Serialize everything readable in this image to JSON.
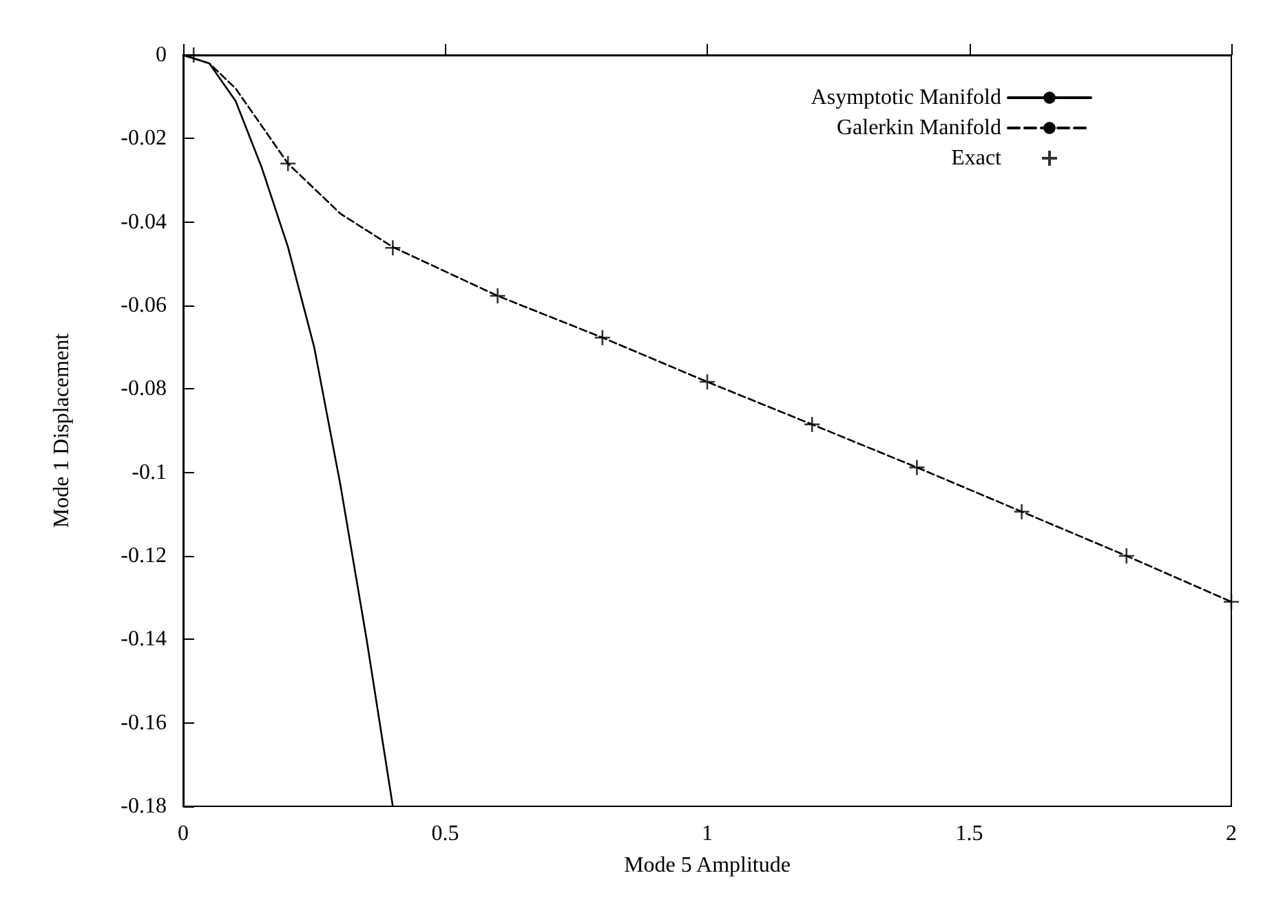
{
  "chart_data": {
    "type": "line",
    "xlabel": "Mode 5 Amplitude",
    "ylabel": "Mode 1 Displacement",
    "xlim": [
      0,
      2
    ],
    "xticks": [
      0,
      0.5,
      1,
      1.5,
      2
    ],
    "ylim": [
      -0.18,
      0
    ],
    "yticks": [
      -0.18,
      -0.16,
      -0.14,
      -0.12,
      -0.1,
      -0.08,
      -0.06,
      -0.04,
      -0.02,
      0
    ],
    "grid": false,
    "legend": "top right",
    "series": [
      {
        "name": "Asymptotic Manifold",
        "color": "#000000",
        "line_style": "solid",
        "marker": "none",
        "x": [
          0,
          0.05,
          0.1,
          0.15,
          0.2,
          0.25,
          0.3,
          0.35,
          0.4
        ],
        "values": [
          0,
          -0.002,
          -0.011,
          -0.027,
          -0.046,
          -0.07,
          -0.103,
          -0.14,
          -0.18
        ]
      },
      {
        "name": "Galerkin Manifold",
        "color": "#000000",
        "line_style": "dashed",
        "marker": "none",
        "x": [
          0,
          0.05,
          0.1,
          0.15,
          0.2,
          0.3,
          0.4,
          0.6,
          0.8,
          1.0,
          1.2,
          1.4,
          1.6,
          1.8,
          2.0
        ],
        "values": [
          0,
          -0.002,
          -0.008,
          -0.017,
          -0.026,
          -0.038,
          -0.046,
          -0.0577,
          -0.0677,
          -0.0783,
          -0.0885,
          -0.0988,
          -0.1094,
          -0.12,
          -0.131
        ]
      },
      {
        "name": "Exact",
        "type": "scatter",
        "color": "#000000",
        "marker": "cross",
        "x": [
          0.02,
          0.2,
          0.4,
          0.6,
          0.8,
          1.0,
          1.2,
          1.4,
          1.6,
          1.8,
          2.0
        ],
        "values": [
          0,
          -0.026,
          -0.0462,
          -0.0577,
          -0.0677,
          -0.0783,
          -0.0885,
          -0.0988,
          -0.1094,
          -0.12,
          -0.131
        ]
      }
    ]
  }
}
